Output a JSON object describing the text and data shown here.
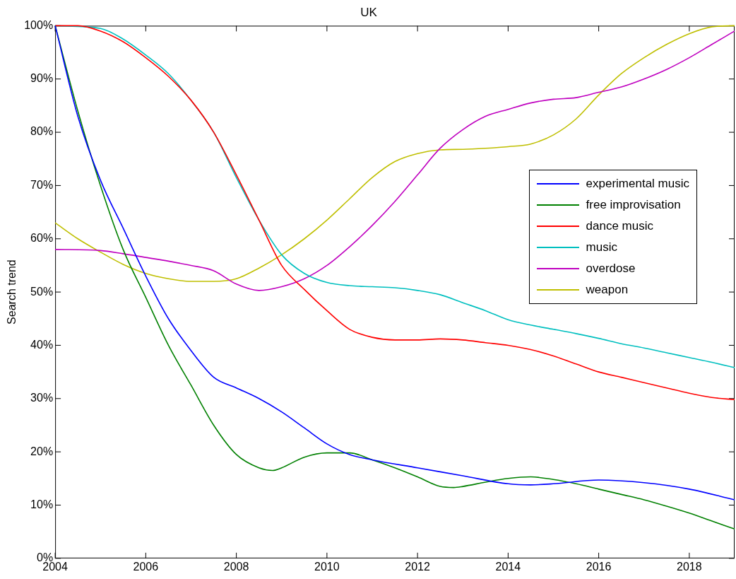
{
  "chart_data": {
    "type": "line",
    "title": "UK",
    "ylabel": "Search trend",
    "xlim": [
      2004,
      2019
    ],
    "xticks": [
      2004,
      2006,
      2008,
      2010,
      2012,
      2014,
      2016,
      2018
    ],
    "ylim": [
      0,
      100
    ],
    "yticks": [
      {
        "value": 0,
        "label": "0%"
      },
      {
        "value": 10,
        "label": "10%"
      },
      {
        "value": 20,
        "label": "20%"
      },
      {
        "value": 30,
        "label": "30%"
      },
      {
        "value": 40,
        "label": "40%"
      },
      {
        "value": 50,
        "label": "50%"
      },
      {
        "value": 60,
        "label": "60%"
      },
      {
        "value": 70,
        "label": "70%"
      },
      {
        "value": 80,
        "label": "80%"
      },
      {
        "value": 90,
        "label": "90%"
      },
      {
        "value": 100,
        "label": "100%"
      }
    ],
    "grid": false,
    "legend": "right",
    "marker": "none",
    "line_style": "solid",
    "series": [
      {
        "name": "experimental music",
        "color": "#0000ff",
        "x": [
          2004,
          2004.5,
          2005,
          2005.5,
          2006,
          2006.5,
          2007,
          2007.5,
          2008,
          2008.5,
          2009,
          2009.5,
          2010,
          2010.5,
          2011,
          2012,
          2013,
          2014,
          2014.5,
          2015,
          2016,
          2017,
          2018,
          2019
        ],
        "values": [
          100,
          83,
          71,
          62,
          53,
          45,
          39,
          34,
          32,
          30,
          27.5,
          24.5,
          21.5,
          19.5,
          18.5,
          17,
          15.5,
          14,
          13.8,
          14,
          14.7,
          14.2,
          13,
          11
        ]
      },
      {
        "name": "free improvisation",
        "color": "#008000",
        "x": [
          2004,
          2004.5,
          2005,
          2005.5,
          2006,
          2006.5,
          2007,
          2007.5,
          2008,
          2008.5,
          2008.8,
          2009,
          2009.5,
          2010,
          2010.5,
          2011,
          2011.5,
          2012,
          2012.5,
          2012.8,
          2013,
          2013.5,
          2014,
          2014.5,
          2015,
          2015.5,
          2016,
          2016.5,
          2017,
          2017.5,
          2018,
          2018.5,
          2019
        ],
        "values": [
          100,
          84,
          70,
          58,
          49,
          40,
          32.5,
          25,
          19.5,
          17,
          16.5,
          17,
          19,
          19.8,
          19.8,
          18.5,
          17,
          15.3,
          13.5,
          13.3,
          13.5,
          14.3,
          15,
          15.3,
          14.8,
          14,
          13,
          12,
          11,
          9.8,
          8.5,
          7,
          5.5
        ]
      },
      {
        "name": "dance music",
        "color": "#ff0000",
        "x": [
          2004,
          2004.5,
          2005,
          2005.5,
          2006,
          2006.5,
          2007,
          2007.5,
          2008,
          2008.5,
          2009,
          2009.5,
          2010,
          2010.5,
          2011,
          2011.5,
          2012,
          2012.5,
          2013,
          2013.5,
          2014,
          2014.5,
          2015,
          2015.5,
          2016,
          2016.5,
          2017,
          2017.5,
          2018,
          2018.5,
          2019
        ],
        "values": [
          100,
          100,
          99,
          97,
          94,
          90.5,
          86,
          80,
          72,
          63.5,
          55,
          50.5,
          46.5,
          43,
          41.5,
          41,
          41,
          41.2,
          41,
          40.5,
          40,
          39.2,
          38,
          36.5,
          35,
          34,
          33,
          32,
          31,
          30.2,
          29.8
        ]
      },
      {
        "name": "music",
        "color": "#00bfbf",
        "x": [
          2004,
          2005,
          2005.5,
          2006,
          2006.5,
          2007,
          2007.5,
          2008,
          2008.5,
          2009,
          2009.5,
          2010,
          2010.5,
          2011,
          2011.5,
          2012,
          2012.5,
          2013,
          2013.5,
          2014,
          2014.5,
          2015,
          2015.5,
          2016,
          2016.5,
          2017,
          2017.5,
          2018,
          2018.5,
          2019
        ],
        "values": [
          100,
          99.5,
          97.5,
          94.5,
          91,
          86,
          80,
          71.5,
          63.5,
          57,
          53.5,
          51.8,
          51.2,
          51,
          50.8,
          50.3,
          49.5,
          48,
          46.5,
          44.8,
          43.8,
          43,
          42.2,
          41.3,
          40.3,
          39.5,
          38.6,
          37.7,
          36.8,
          35.8
        ]
      },
      {
        "name": "overdose",
        "color": "#bf00bf",
        "x": [
          2004,
          2005,
          2005.5,
          2006,
          2006.5,
          2007,
          2007.5,
          2008,
          2008.5,
          2009,
          2009.5,
          2010,
          2010.5,
          2011,
          2011.5,
          2012,
          2012.5,
          2013,
          2013.5,
          2014,
          2014.5,
          2015,
          2015.5,
          2016,
          2016.5,
          2017,
          2017.5,
          2018,
          2018.5,
          2019
        ],
        "values": [
          58,
          57.8,
          57.2,
          56.5,
          55.8,
          55,
          54,
          51.5,
          50.3,
          51,
          52.5,
          55,
          58.5,
          62.5,
          67,
          72,
          77,
          80.5,
          83,
          84.3,
          85.5,
          86.2,
          86.5,
          87.5,
          88.5,
          90,
          91.8,
          94,
          96.5,
          99
        ]
      },
      {
        "name": "weapon",
        "color": "#bfbf00",
        "x": [
          2004,
          2004.5,
          2005,
          2005.5,
          2006,
          2006.5,
          2007,
          2007.5,
          2008,
          2008.5,
          2009,
          2009.5,
          2010,
          2010.5,
          2011,
          2011.5,
          2012,
          2012.5,
          2013,
          2013.5,
          2014,
          2014.5,
          2015,
          2015.5,
          2016,
          2016.5,
          2017,
          2017.5,
          2018,
          2018.5,
          2019
        ],
        "values": [
          63,
          60,
          57.5,
          55.2,
          53.5,
          52.5,
          52,
          52,
          52.5,
          54.5,
          57,
          60,
          63.5,
          67.5,
          71.5,
          74.5,
          76,
          76.7,
          76.8,
          77,
          77.3,
          77.8,
          79.5,
          82.5,
          87,
          91,
          94,
          96.5,
          98.5,
          99.8,
          100
        ]
      }
    ]
  }
}
